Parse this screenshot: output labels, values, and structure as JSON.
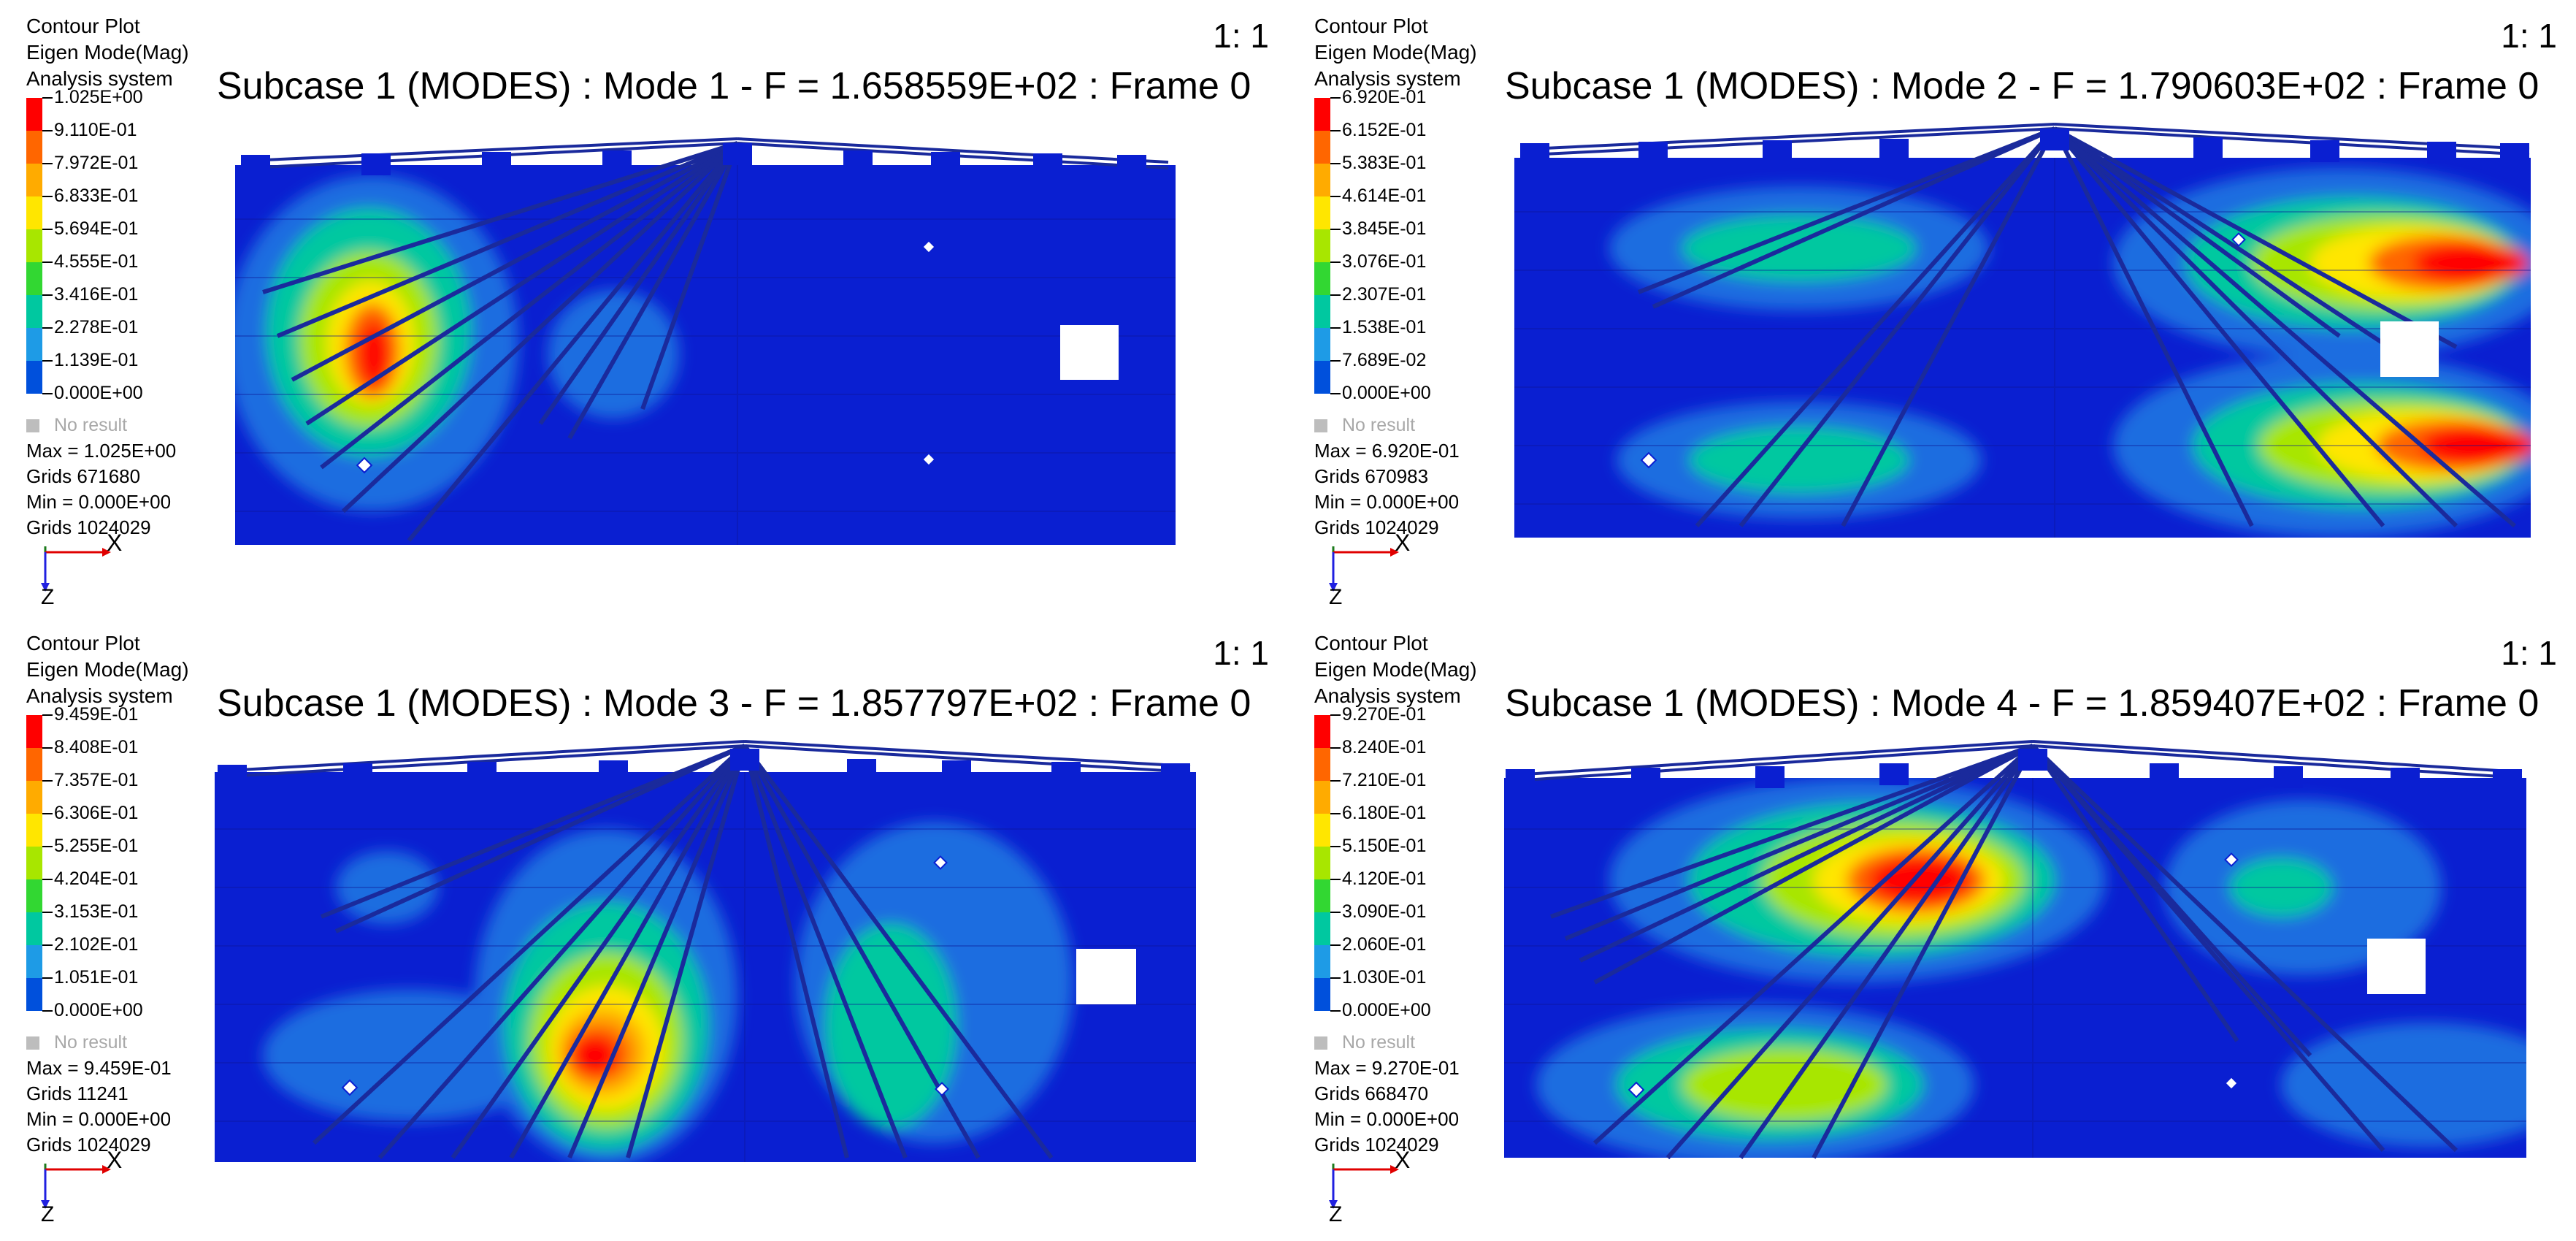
{
  "colors": {
    "legend_scale": [
      "#ff0000",
      "#ff6600",
      "#ffab00",
      "#ffe600",
      "#a8e600",
      "#32d732",
      "#00c8a0",
      "#1e9be6",
      "#0050dc",
      "#0000c8"
    ],
    "mesh_base": "#0a1fd1",
    "contour_low": "#1d6de0",
    "contour_mid": "#00c8a0",
    "contour_high": "#ff0000"
  },
  "panels": [
    {
      "header_lines": [
        "Contour Plot",
        "Eigen Mode(Mag)",
        "Analysis system"
      ],
      "legend_values": [
        "1.025E+00",
        "9.110E-01",
        "7.972E-01",
        "6.833E-01",
        "5.694E-01",
        "4.555E-01",
        "3.416E-01",
        "2.278E-01",
        "1.139E-01",
        "0.000E+00"
      ],
      "no_result": "No result",
      "stats": [
        "Max = 1.025E+00",
        "Grids 671680",
        "Min = 0.000E+00",
        "Grids 1024029"
      ],
      "title": "Subcase 1 (MODES) : Mode 1 - F = 1.658559E+02 : Frame 0",
      "scale": "1: 1",
      "axis_x": "X",
      "axis_z": "Z"
    },
    {
      "header_lines": [
        "Contour Plot",
        "Eigen Mode(Mag)",
        "Analysis system"
      ],
      "legend_values": [
        "6.920E-01",
        "6.152E-01",
        "5.383E-01",
        "4.614E-01",
        "3.845E-01",
        "3.076E-01",
        "2.307E-01",
        "1.538E-01",
        "7.689E-02",
        "0.000E+00"
      ],
      "no_result": "No result",
      "stats": [
        "Max = 6.920E-01",
        "Grids 670983",
        "Min = 0.000E+00",
        "Grids 1024029"
      ],
      "title": "Subcase 1 (MODES) : Mode 2 - F = 1.790603E+02 : Frame 0",
      "scale": "1: 1",
      "axis_x": "X",
      "axis_z": "Z"
    },
    {
      "header_lines": [
        "Contour Plot",
        "Eigen Mode(Mag)",
        "Analysis system"
      ],
      "legend_values": [
        "9.459E-01",
        "8.408E-01",
        "7.357E-01",
        "6.306E-01",
        "5.255E-01",
        "4.204E-01",
        "3.153E-01",
        "2.102E-01",
        "1.051E-01",
        "0.000E+00"
      ],
      "no_result": "No result",
      "stats": [
        "Max = 9.459E-01",
        "Grids 11241",
        "Min = 0.000E+00",
        "Grids 1024029"
      ],
      "title": "Subcase 1 (MODES) : Mode 3 - F = 1.857797E+02 : Frame 0",
      "scale": "1: 1",
      "axis_x": "X",
      "axis_z": "Z"
    },
    {
      "header_lines": [
        "Contour Plot",
        "Eigen Mode(Mag)",
        "Analysis system"
      ],
      "legend_values": [
        "9.270E-01",
        "8.240E-01",
        "7.210E-01",
        "6.180E-01",
        "5.150E-01",
        "4.120E-01",
        "3.090E-01",
        "2.060E-01",
        "1.030E-01",
        "0.000E+00"
      ],
      "no_result": "No result",
      "stats": [
        "Max = 9.270E-01",
        "Grids 668470",
        "Min = 0.000E+00",
        "Grids 1024029"
      ],
      "title": "Subcase 1 (MODES) : Mode 4 - F = 1.859407E+02 : Frame 0",
      "scale": "1: 1",
      "axis_x": "X",
      "axis_z": "Z"
    }
  ]
}
